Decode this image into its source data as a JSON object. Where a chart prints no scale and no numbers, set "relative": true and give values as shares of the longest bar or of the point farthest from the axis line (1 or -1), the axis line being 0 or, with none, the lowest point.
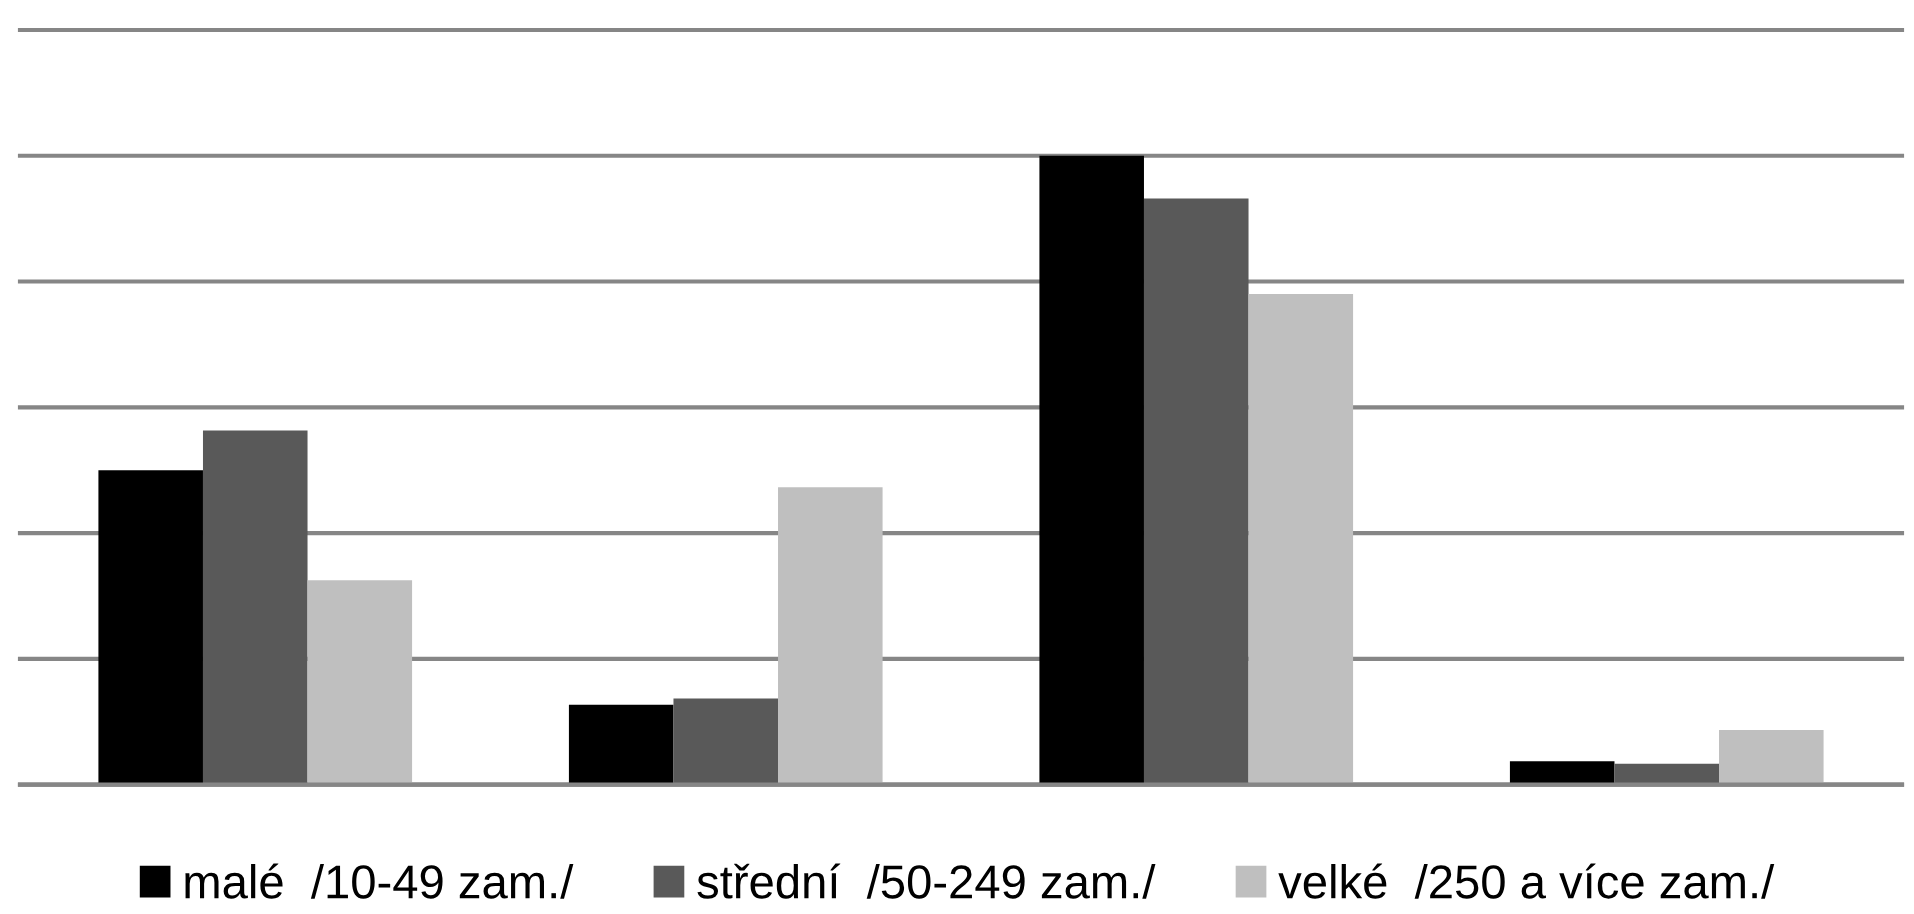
{
  "chart_data": {
    "type": "bar",
    "relative": true,
    "categories": [
      null,
      null,
      null,
      null
    ],
    "series": [
      {
        "name": "malé  /10-49 zam./",
        "color": "#000000",
        "values": [
          0.5,
          0.127,
          1,
          0.037
        ]
      },
      {
        "name": "střední  /50-249 zam./",
        "color": "#595959",
        "values": [
          0.563,
          0.137,
          0.932,
          0.033
        ]
      },
      {
        "name": "velké  /250 a více zam./",
        "color": "#bfbfbf",
        "values": [
          0.325,
          0.473,
          0.78,
          0.087
        ]
      }
    ],
    "grid": "y",
    "legend": "bottom"
  }
}
